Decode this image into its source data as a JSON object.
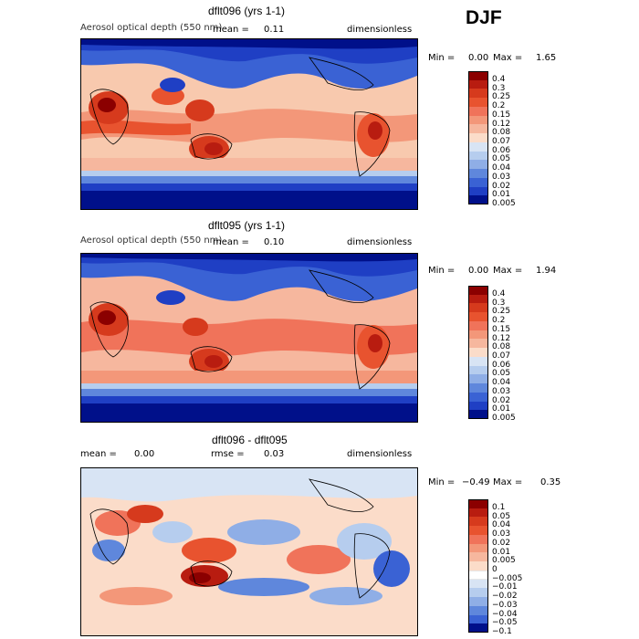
{
  "season": "DJF",
  "panels": [
    {
      "title": "dflt096 (yrs 1-1)",
      "field": "Aerosol optical depth (550 nm)",
      "mean_label": "mean =",
      "mean_value": "0.11",
      "units": "dimensionless",
      "min_label": "Min =",
      "min_value": "0.00",
      "max_label": "Max =",
      "max_value": "1.65",
      "levels": [
        "0.4",
        "0.3",
        "0.25",
        "0.2",
        "0.15",
        "0.12",
        "0.08",
        "0.07",
        "0.06",
        "0.05",
        "0.04",
        "0.03",
        "0.02",
        "0.01",
        "0.005"
      ],
      "colors": [
        "#8b0000",
        "#b81c10",
        "#d63a1d",
        "#e8532f",
        "#f0735a",
        "#f39779",
        "#f6b79e",
        "#fbdcc9",
        "#d8e4f4",
        "#b6cdee",
        "#8faee6",
        "#5f87dc",
        "#3a62d4",
        "#1f3fc4",
        "#00108a"
      ]
    },
    {
      "title": "dflt095 (yrs 1-1)",
      "field": "Aerosol optical depth (550 nm)",
      "mean_label": "mean =",
      "mean_value": "0.10",
      "units": "dimensionless",
      "min_label": "Min =",
      "min_value": "0.00",
      "max_label": "Max =",
      "max_value": "1.94",
      "levels": [
        "0.4",
        "0.3",
        "0.25",
        "0.2",
        "0.15",
        "0.12",
        "0.08",
        "0.07",
        "0.06",
        "0.05",
        "0.04",
        "0.03",
        "0.02",
        "0.01",
        "0.005"
      ],
      "colors": [
        "#8b0000",
        "#b81c10",
        "#d63a1d",
        "#e8532f",
        "#f0735a",
        "#f39779",
        "#f6b79e",
        "#fbdcc9",
        "#d8e4f4",
        "#b6cdee",
        "#8faee6",
        "#5f87dc",
        "#3a62d4",
        "#1f3fc4",
        "#00108a"
      ]
    },
    {
      "title": "dflt096 - dflt095",
      "field": "",
      "mean_label": "mean =",
      "mean_value": "0.00",
      "rmse_label": "rmse =",
      "rmse_value": "0.03",
      "units": "dimensionless",
      "min_label": "Min =",
      "min_value": "−0.49",
      "max_label": "Max =",
      "max_value": "0.35",
      "levels": [
        "0.1",
        "0.05",
        "0.04",
        "0.03",
        "0.02",
        "0.01",
        "0.005",
        "0",
        "−0.005",
        "−0.01",
        "−0.02",
        "−0.03",
        "−0.04",
        "−0.05",
        "−0.1"
      ],
      "colors": [
        "#8b0000",
        "#b81c10",
        "#d63a1d",
        "#e8532f",
        "#f0735a",
        "#f39779",
        "#f6b79e",
        "#fbdcc9",
        "#ffffff",
        "#d8e4f4",
        "#b6cdee",
        "#8faee6",
        "#5f87dc",
        "#3a62d4",
        "#00108a"
      ]
    }
  ],
  "chart_data": [
    {
      "type": "heatmap",
      "title": "dflt096 (yrs 1-1)",
      "subtitle": "Aerosol optical depth (550 nm)",
      "units": "dimensionless",
      "mean": 0.11,
      "min": 0.0,
      "max": 1.65,
      "season": "DJF",
      "contour_levels": [
        0.005,
        0.01,
        0.02,
        0.03,
        0.04,
        0.05,
        0.06,
        0.07,
        0.08,
        0.12,
        0.15,
        0.2,
        0.25,
        0.3,
        0.4
      ]
    },
    {
      "type": "heatmap",
      "title": "dflt095 (yrs 1-1)",
      "subtitle": "Aerosol optical depth (550 nm)",
      "units": "dimensionless",
      "mean": 0.1,
      "min": 0.0,
      "max": 1.94,
      "season": "DJF",
      "contour_levels": [
        0.005,
        0.01,
        0.02,
        0.03,
        0.04,
        0.05,
        0.06,
        0.07,
        0.08,
        0.12,
        0.15,
        0.2,
        0.25,
        0.3,
        0.4
      ]
    },
    {
      "type": "heatmap",
      "title": "dflt096 - dflt095",
      "units": "dimensionless",
      "mean": 0.0,
      "rmse": 0.03,
      "min": -0.49,
      "max": 0.35,
      "season": "DJF",
      "contour_levels": [
        -0.1,
        -0.05,
        -0.04,
        -0.03,
        -0.02,
        -0.01,
        -0.005,
        0,
        0.005,
        0.01,
        0.02,
        0.03,
        0.04,
        0.05,
        0.1
      ]
    }
  ]
}
